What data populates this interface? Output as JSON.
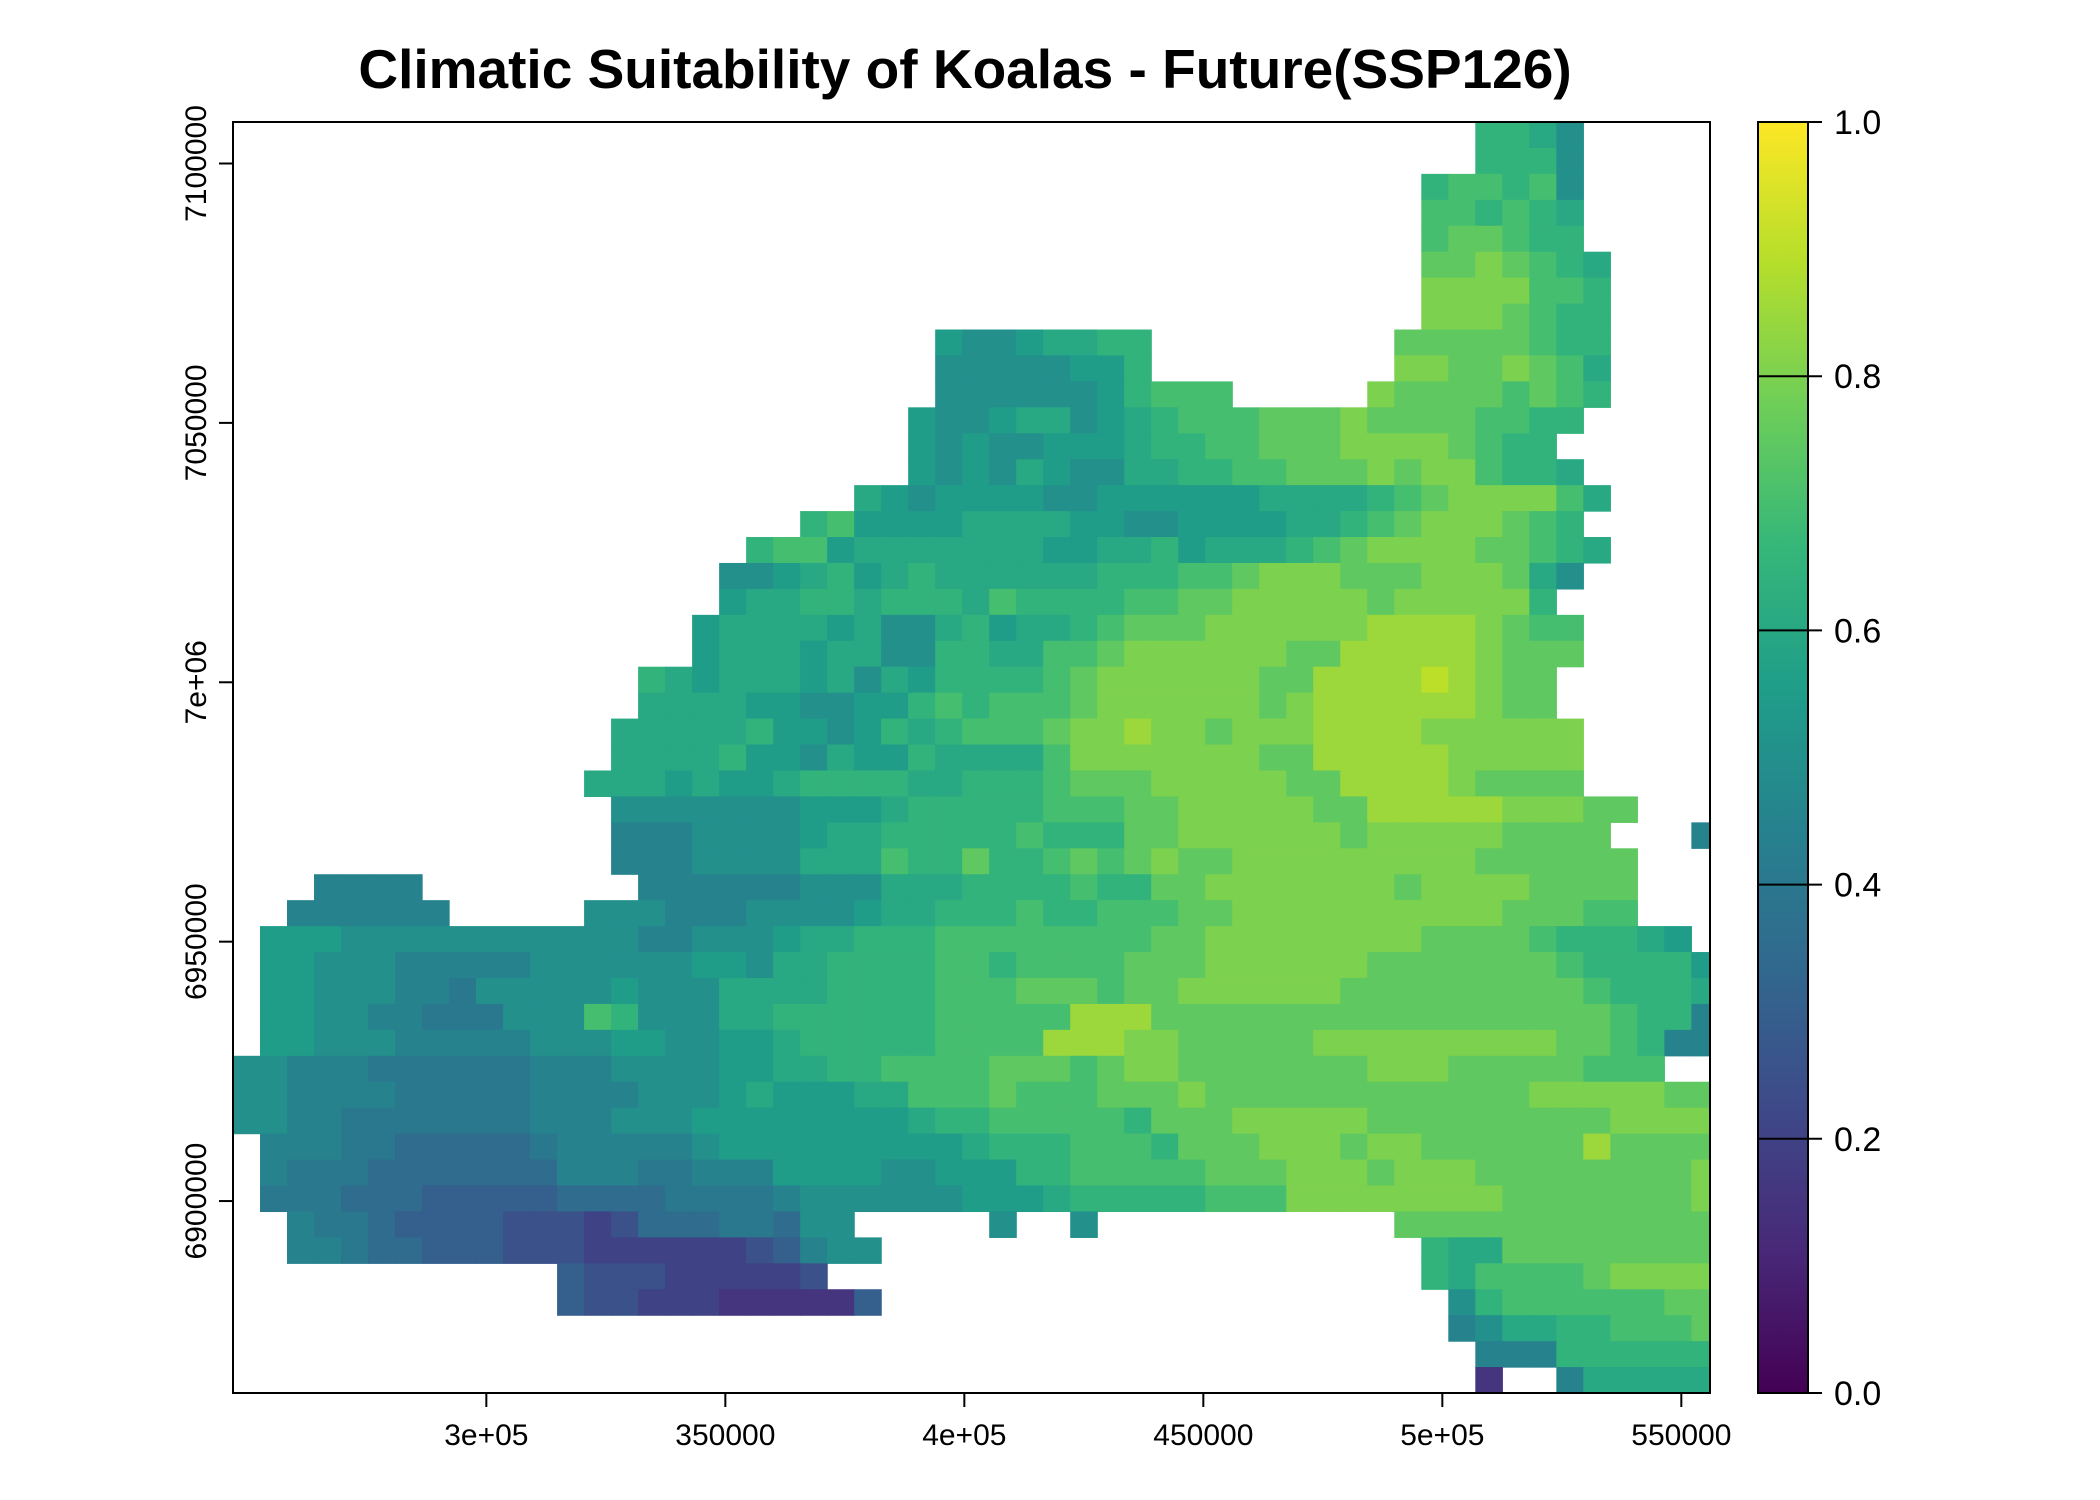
{
  "chart_data": {
    "type": "heatmap",
    "title": "Climatic Suitability of Koalas - Future(SSP126)",
    "xlabel": "",
    "ylabel": "",
    "xlim": [
      247000,
      556000
    ],
    "ylim": [
      6863000,
      7108000
    ],
    "x_ticks": [
      {
        "value": 300000,
        "label": "3e+05"
      },
      {
        "value": 350000,
        "label": "350000"
      },
      {
        "value": 400000,
        "label": "4e+05"
      },
      {
        "value": 450000,
        "label": "450000"
      },
      {
        "value": 500000,
        "label": "5e+05"
      },
      {
        "value": 550000,
        "label": "550000"
      }
    ],
    "y_ticks": [
      {
        "value": 6900000,
        "label": "6900000"
      },
      {
        "value": 6950000,
        "label": "6950000"
      },
      {
        "value": 7000000,
        "label": "7e+06"
      },
      {
        "value": 7050000,
        "label": "7050000"
      },
      {
        "value": 7100000,
        "label": "7100000"
      }
    ],
    "colorbar": {
      "palette": "viridis",
      "range": [
        0,
        1
      ],
      "stops": [
        "#440154",
        "#482878",
        "#3e4989",
        "#31688e",
        "#26828e",
        "#1f9e89",
        "#35b779",
        "#6ece58",
        "#b5de2b",
        "#fde725"
      ],
      "ticks": [
        {
          "value": 0.0,
          "label": "0.0"
        },
        {
          "value": 0.2,
          "label": "0.2"
        },
        {
          "value": 0.4,
          "label": "0.4"
        },
        {
          "value": 0.6,
          "label": "0.6"
        },
        {
          "value": 0.8,
          "label": "0.8"
        },
        {
          "value": 1.0,
          "label": "1.0"
        }
      ]
    },
    "grid": {
      "x_start": 247000,
      "cell_size_x": 5650,
      "y_start": 7108000,
      "cell_size_y": 5000,
      "legend": " 0123456789abcdef",
      "value_by_symbol": {
        "0": 0.1,
        "1": 0.15,
        "2": 0.2,
        "3": 0.25,
        "4": 0.3,
        "5": 0.35,
        "6": 0.4,
        "7": 0.45,
        "8": 0.5,
        "9": 0.55,
        "a": 0.6,
        "b": 0.65,
        "c": 0.7,
        "d": 0.75,
        "e": 0.8,
        "f": 0.85,
        "g": 0.9
      },
      "rows": [
        "                                              bba8        ",
        "                                              bbb8        ",
        "                                            bccbc8        ",
        "                                            ccbcba        ",
        "                                            cddcbb        ",
        "                                            ddedcba       ",
        "                                            eeeeccb       ",
        "                                            eeedcbb       ",
        "                          9889aabb         dddddcbb       ",
        "                          8888899b         eeddedca       ",
        "                          8888889bccc     eddddcdcb       ",
        "                         9889aa89abcccdddeddddccbb        ",
        "                         98988999abbccdddeeeedcbb        ",
        "                         9898a988aabbccdddedeecbba        ",
        "                       a98999988999999aaaabcdeeeeca       ",
        "                     bc9999aaaa99889999aabcdeeedcb        ",
        "                   bcc9aaaaaaa99aab9aaabcdeeeeddcba       ",
        "                  889ab9abaaaaaabbbccdeeedddeeeda8        ",
        "                  9aabbabbbacbbbbccddeeeeedeeeeeb         ",
        "                 9aaaa9a88ab9aabcdddeeeeeeffffedcc        ",
        "                 9aaa9aa88bbaaccdeeeeeeddfffffeddd         ",
        "               ba9aaa9a8a9bbbbcdeeeeeeddffffgfedd         ",
        "               aaaa998899bcbcccdeeeeeedeffffffedd         ",
        "              aaaaab9989babcccdeefeedeeeffffeeeeee         ",
        "              aaaab998a99baaaaceeeeeeeddfffffeeeee         ",
        "             aaa9a99abbbbaabbbcdddeeeeeddffffedddd         ",
        "              8888888999abbbbbcccddeeeeeddfffffeeedd         ",
        "              77788889aabbbbbcbbbddeeeeeedeeeeedddd   76   ",
        "              7778888aaacbbdbbcdcdeddeeeeeeeeedddddd   76   ",
        "   7777        777777888aaabbbbcbbddeeeeeeedeeeedddd         ",
        "  777777     88877788889aabbbcbbcccddeeeeeeeeeedddcc        ",
        " 99988888888888778889aabbbccccccccddeeeeeeeeddddcbbba9      ",
        " 9988877777888888998aabbbbccbccccdddeeeeeedddddddcbbbb9      ",
        " 99888776888889888aaaabbbbcccdddcddeeeeeedddddddddcbbbaa      ",
        " 998877666888cb888aabbbbbbcccccfffdddddddddddddddddcbb78      ",
        " 9988877777888998899abbbbbccccfffeedddddeeeeeeeeeddcb77 7     ",
        "88777666666777888899aabbccccdddcdeedddddddeeedddddccc       ",
        "8877776666677778889a999aacccdcccdddeddddddddddddeeeeedd      ",
        "8877666666677788899999999abbcccccbdddeeeeedddddddddeeeeed     ",
        " 77766555556777778999999999abbbcccbdddeeedeeddddddfddddeed     ",
        " 7666555555577766777999988999bbcccccdddeeedeeeddddddddeeee    ",
        " 66655544444555566667888888999abbbbbccceeeeeeeedddddddeeeeeeed    ",
        "  766544443332355566588     8  8           dddddddddddddcddeeeeeeeed   ",
        "  7765544433322222234788                    baadddddddddddddddeeeeeed   ",
        "            4333222223                      baccccdeeeeedddddddddddcd    ",
        "            433222111114                     8bccccccdddeedddcccccdd     ",
        "                                             78aabbcccddcccccbba      ",
        "                                              777bbbbbbaaaaabbcb        ",
        "                                              1  7aaaaaa8aaaccb         ",
        "                                              11  8bb99988bbb9          "
      ]
    }
  }
}
